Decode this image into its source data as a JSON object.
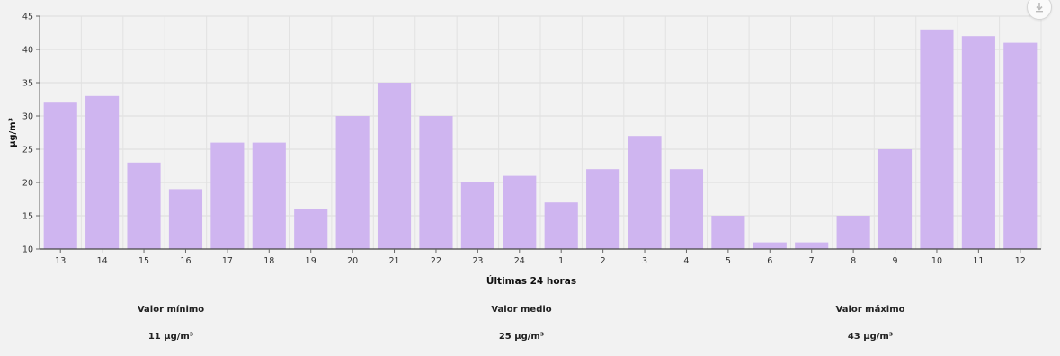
{
  "chart_data": {
    "type": "bar",
    "categories": [
      "13",
      "14",
      "15",
      "16",
      "17",
      "18",
      "19",
      "20",
      "21",
      "22",
      "23",
      "24",
      "1",
      "2",
      "3",
      "4",
      "5",
      "6",
      "7",
      "8",
      "9",
      "10",
      "11",
      "12"
    ],
    "values": [
      32,
      33,
      23,
      19,
      26,
      26,
      16,
      30,
      35,
      30,
      20,
      21,
      17,
      22,
      27,
      22,
      15,
      11,
      11,
      15,
      25,
      43,
      42,
      41
    ],
    "xlabel": "Últimas 24 horas",
    "ylabel": "µg/m³",
    "ylim": [
      10,
      45
    ],
    "yticks": [
      10,
      15,
      20,
      25,
      30,
      35,
      40,
      45
    ],
    "grid": true,
    "bar_color": "#cfb5f0"
  },
  "stats": {
    "min_label": "Valor mínimo",
    "min_value": "11 µg/m³",
    "avg_label": "Valor medio",
    "avg_value": "25 µg/m³",
    "max_label": "Valor máximo",
    "max_value": "43 µg/m³"
  },
  "download_icon": "download-icon"
}
